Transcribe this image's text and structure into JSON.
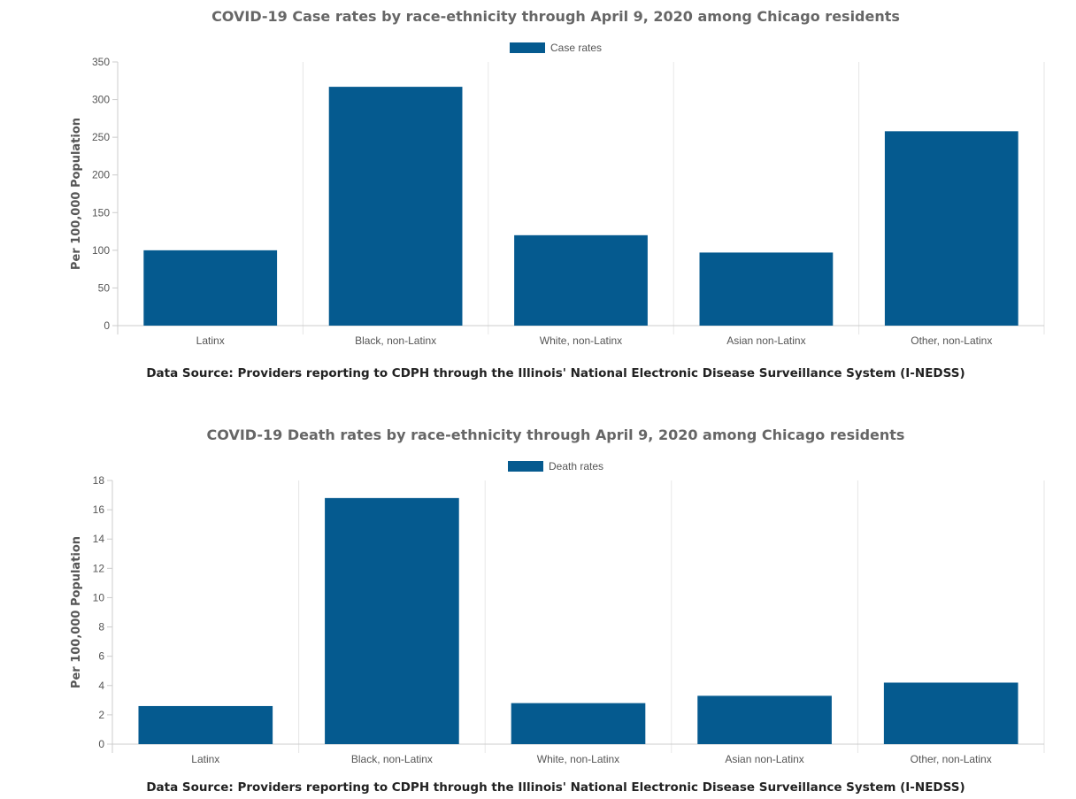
{
  "colors": {
    "bar": "#055a8f",
    "grid": "#e6e6e6",
    "axis": "#cccccc",
    "text": "#555555",
    "title": "#666666"
  },
  "chart_data": [
    {
      "type": "bar",
      "title": "COVID-19 Case rates by race-ethnicity through April 9, 2020 among Chicago residents",
      "legend": "Case rates",
      "legend_position": "top-center",
      "ylabel": "Per 100,000 Population",
      "categories": [
        "Latinx",
        "Black, non-Latinx",
        "White, non-Latinx",
        "Asian non-Latinx",
        "Other, non-Latinx"
      ],
      "values": [
        100,
        317,
        120,
        97,
        258
      ],
      "ylim": [
        0,
        350
      ],
      "yticks": [
        0,
        50,
        100,
        150,
        200,
        250,
        300,
        350
      ],
      "grid": "vertical",
      "source": "Data Source: Providers reporting to CDPH through the Illinois' National Electronic Disease Surveillance System (I-NEDSS)"
    },
    {
      "type": "bar",
      "title": "COVID-19 Death rates by race-ethnicity through April 9, 2020 among Chicago residents",
      "legend": "Death rates",
      "legend_position": "top-center",
      "ylabel": "Per 100,000 Population",
      "categories": [
        "Latinx",
        "Black, non-Latinx",
        "White, non-Latinx",
        "Asian non-Latinx",
        "Other, non-Latinx"
      ],
      "values": [
        2.6,
        16.8,
        2.8,
        3.3,
        4.2
      ],
      "ylim": [
        0,
        18
      ],
      "yticks": [
        0,
        2,
        4,
        6,
        8,
        10,
        12,
        14,
        16,
        18
      ],
      "grid": "vertical",
      "source": "Data Source: Providers reporting to CDPH through the Illinois' National Electronic Disease Surveillance System (I-NEDSS)"
    }
  ]
}
